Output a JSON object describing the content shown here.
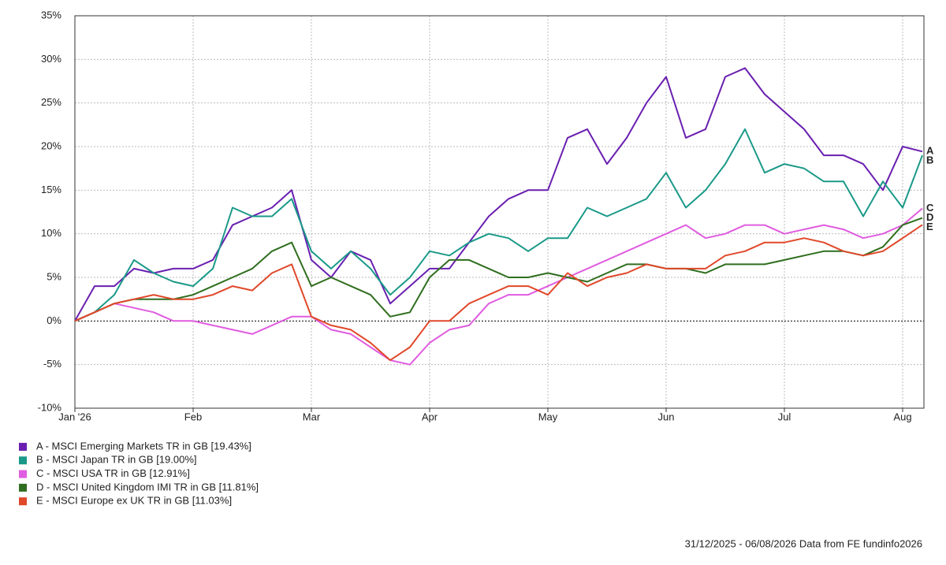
{
  "chart_data": {
    "type": "line",
    "categories": [
      "Jan '26",
      null,
      null,
      null,
      null,
      null,
      "Feb",
      null,
      null,
      null,
      null,
      null,
      "Mar",
      null,
      null,
      null,
      null,
      null,
      "Apr",
      null,
      null,
      null,
      null,
      null,
      "May",
      null,
      null,
      null,
      null,
      null,
      "Jun",
      null,
      null,
      null,
      null,
      null,
      "Jul",
      null,
      null,
      null,
      null,
      null,
      "Aug",
      null
    ],
    "series": [
      {
        "name": "A - MSCI Emerging Markets TR in GB [19.43%]",
        "end_label": "A",
        "color": "#6a1fb0",
        "values": [
          0,
          4,
          4,
          6,
          5.5,
          6,
          6,
          7,
          11,
          12,
          13,
          15,
          7,
          5,
          8,
          7,
          2,
          4,
          6,
          6,
          9,
          12,
          14,
          15,
          15,
          21,
          22,
          18,
          21,
          25,
          28,
          21,
          22,
          28,
          29,
          26,
          24,
          22,
          19,
          19,
          18,
          15,
          20,
          19.43
        ]
      },
      {
        "name": "B - MSCI Japan TR in GB [19.00%]",
        "end_label": "B",
        "color": "#1a9988",
        "values": [
          0,
          1,
          3,
          7,
          5.5,
          4.5,
          4,
          6,
          13,
          12,
          12,
          14,
          8,
          6,
          8,
          6,
          3,
          5,
          8,
          7.5,
          9,
          10,
          9.5,
          8,
          9.5,
          9.5,
          13,
          12,
          13,
          14,
          17,
          13,
          15,
          18,
          22,
          17,
          18,
          17.5,
          16,
          16,
          12,
          16,
          13,
          19.0
        ]
      },
      {
        "name": "C - MSCI USA TR in GB [12.91%]",
        "end_label": "C",
        "color": "#e05ce0",
        "values": [
          0,
          1,
          2,
          1.5,
          1,
          0,
          0,
          -0.5,
          -1,
          -1.5,
          -0.5,
          0.5,
          0.5,
          -1,
          -1.5,
          -3,
          -4.5,
          -5,
          -2.5,
          -1,
          -0.5,
          2,
          3,
          3,
          4,
          5,
          6,
          7,
          8,
          9,
          10,
          11,
          9.5,
          10,
          11,
          11,
          10,
          10.5,
          11,
          10.5,
          9.5,
          10,
          11,
          12.91
        ]
      },
      {
        "name": "D - MSCI United Kingdom IMI TR in GB [11.81%]",
        "end_label": "D",
        "color": "#2f6e1e",
        "values": [
          0,
          1,
          2,
          2.5,
          2.5,
          2.5,
          3,
          4,
          5,
          6,
          8,
          9,
          4,
          5,
          4,
          3,
          0.5,
          1,
          5,
          7,
          7,
          6,
          5,
          5,
          5.5,
          5,
          4.5,
          5.5,
          6.5,
          6.5,
          6,
          6,
          5.5,
          6.5,
          6.5,
          6.5,
          7,
          7.5,
          8,
          8,
          7.5,
          8.5,
          11,
          11.81
        ]
      },
      {
        "name": "E - MSCI Europe ex UK TR in GB [11.03%]",
        "end_label": "E",
        "color": "#e0482a",
        "values": [
          0,
          1,
          2,
          2.5,
          3,
          2.5,
          2.5,
          3,
          4,
          3.5,
          5.5,
          6.5,
          0.5,
          -0.5,
          -1,
          -2.5,
          -4.5,
          -3,
          0,
          0,
          2,
          3,
          4,
          4,
          3,
          5.5,
          4,
          5,
          5.5,
          6.5,
          6,
          6,
          6,
          7.5,
          8,
          9,
          9,
          9.5,
          9,
          8,
          7.5,
          8,
          9.5,
          11.03
        ]
      }
    ],
    "ylim": [
      -10,
      35
    ],
    "yticks": [
      {
        "value": -10,
        "label": "-10%"
      },
      {
        "value": -5,
        "label": "-5%"
      },
      {
        "value": 0,
        "label": "0%"
      },
      {
        "value": 5,
        "label": "5%"
      },
      {
        "value": 10,
        "label": "10%"
      },
      {
        "value": 15,
        "label": "15%"
      },
      {
        "value": 20,
        "label": "20%"
      },
      {
        "value": 25,
        "label": "25%"
      },
      {
        "value": 30,
        "label": "30%"
      },
      {
        "value": 35,
        "label": "35%"
      }
    ],
    "grid": true,
    "footer": "31/12/2025 - 06/08/2026 Data from FE fundinfo2026"
  }
}
